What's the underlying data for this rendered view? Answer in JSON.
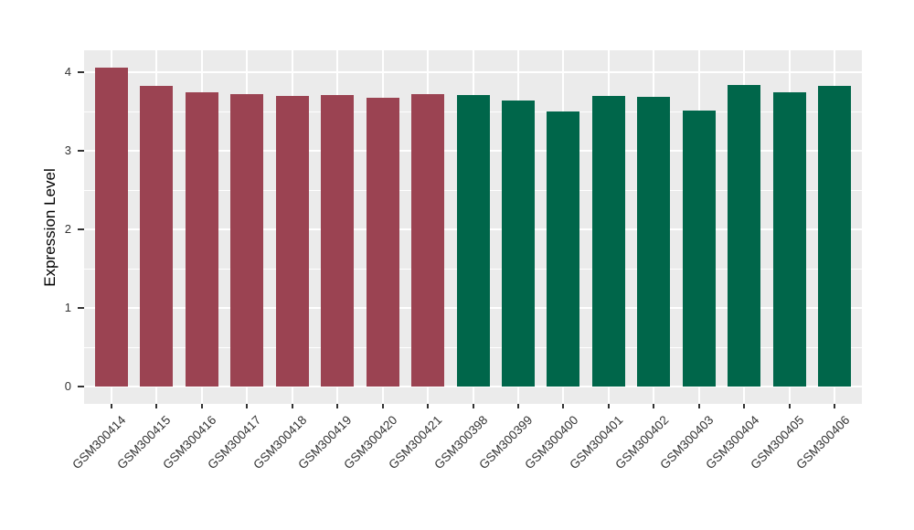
{
  "chart_data": {
    "type": "bar",
    "title": "",
    "xlabel": "",
    "ylabel": "Expression Level",
    "categories": [
      "GSM300414",
      "GSM300415",
      "GSM300416",
      "GSM300417",
      "GSM300418",
      "GSM300419",
      "GSM300420",
      "GSM300421",
      "GSM300398",
      "GSM300399",
      "GSM300400",
      "GSM300401",
      "GSM300402",
      "GSM300403",
      "GSM300404",
      "GSM300405",
      "GSM300406"
    ],
    "values": [
      4.06,
      3.83,
      3.74,
      3.72,
      3.7,
      3.71,
      3.67,
      3.72,
      3.71,
      3.64,
      3.5,
      3.7,
      3.69,
      3.51,
      3.84,
      3.74,
      3.82
    ],
    "bar_colors": [
      "#9B4352",
      "#9B4352",
      "#9B4352",
      "#9B4352",
      "#9B4352",
      "#9B4352",
      "#9B4352",
      "#9B4352",
      "#00664A",
      "#00664A",
      "#00664A",
      "#00664A",
      "#00664A",
      "#00664A",
      "#00664A",
      "#00664A",
      "#00664A"
    ],
    "group_colors": {
      "left_group": "#9B4352",
      "right_group": "#00664A"
    },
    "yticks": [
      "0",
      "1",
      "2",
      "3",
      "4"
    ],
    "ytick_values": [
      0,
      1,
      2,
      3,
      4
    ],
    "ylim": [
      -0.22,
      4.28
    ],
    "grid": true,
    "legend": "none",
    "panel_bg": "#EBEBEB",
    "grid_color": "#FFFFFF",
    "tick_color": "#333333"
  }
}
